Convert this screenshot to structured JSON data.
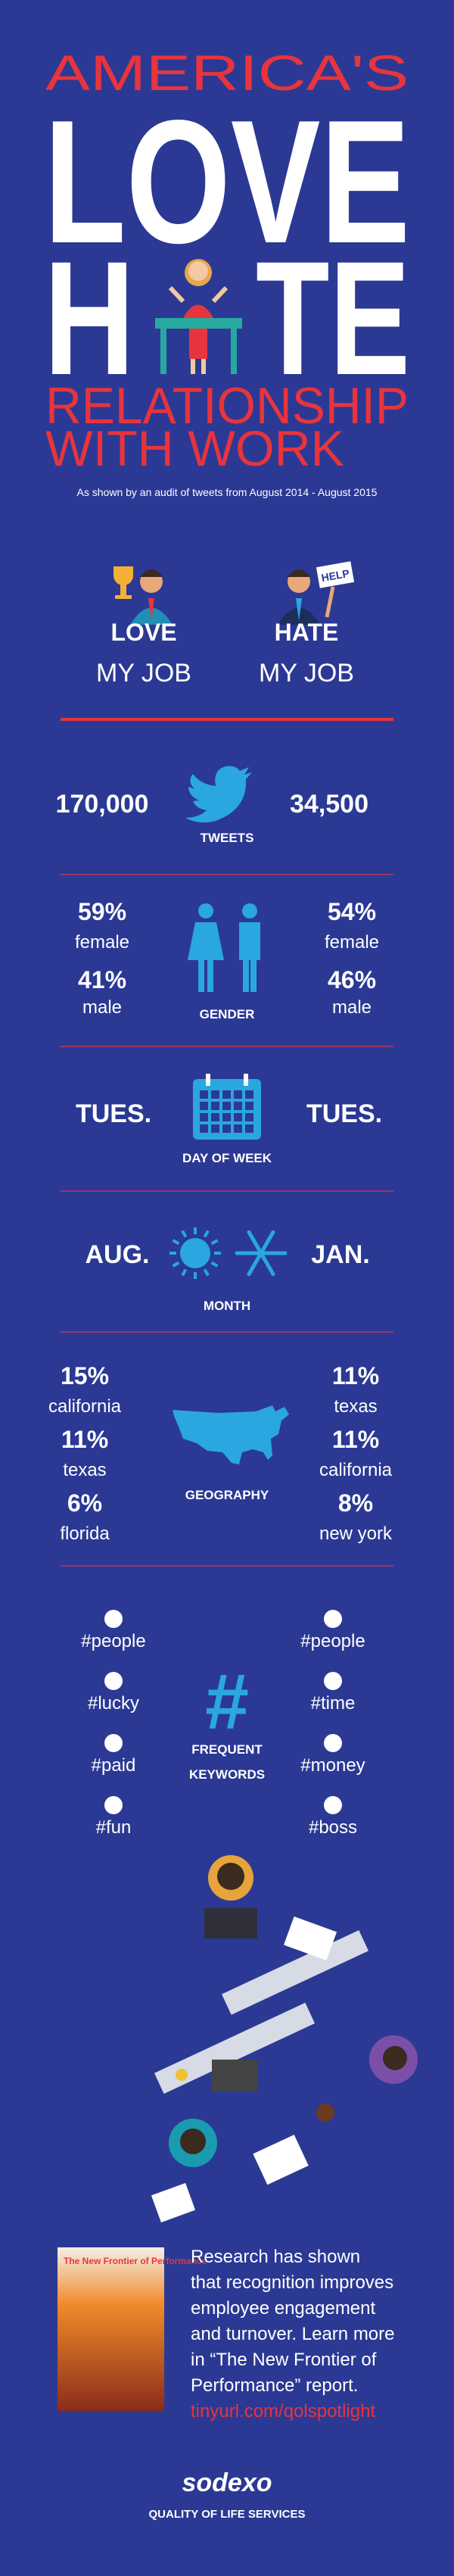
{
  "header": {
    "line1": "AMERICA'S",
    "line2": "LOVE",
    "line3a": "H",
    "line3b": "TE",
    "line4": "RELATIONSHIP",
    "line5": "WITH WORK",
    "subtitle": "As shown by an audit of tweets from August 2014 - August 2015"
  },
  "columns": {
    "love": {
      "title": "LOVE",
      "subtitle": "MY JOB"
    },
    "hate": {
      "title": "HATE",
      "subtitle": "MY JOB",
      "sign": "HELP"
    }
  },
  "tweets": {
    "love": "170,000",
    "hate": "34,500",
    "label": "TWEETS"
  },
  "gender": {
    "label": "GENDER",
    "love": [
      {
        "value": "59%",
        "label": "female"
      },
      {
        "value": "41%",
        "label": "male"
      }
    ],
    "hate": [
      {
        "value": "54%",
        "label": "female"
      },
      {
        "value": "46%",
        "label": "male"
      }
    ]
  },
  "day": {
    "label": "DAY OF WEEK",
    "love": "TUES.",
    "hate": "TUES."
  },
  "month": {
    "label": "MONTH",
    "love": "AUG.",
    "hate": "JAN."
  },
  "geography": {
    "label": "GEOGRAPHY",
    "love": [
      {
        "value": "15%",
        "label": "california"
      },
      {
        "value": "11%",
        "label": "texas"
      },
      {
        "value": "6%",
        "label": "florida"
      }
    ],
    "hate": [
      {
        "value": "11%",
        "label": "texas"
      },
      {
        "value": "11%",
        "label": "california"
      },
      {
        "value": "8%",
        "label": "new york"
      }
    ]
  },
  "keywords": {
    "label_line1": "FREQUENT",
    "label_line2": "KEYWORDS",
    "love": [
      "#people",
      "#lucky",
      "#paid",
      "#fun"
    ],
    "hate": [
      "#people",
      "#time",
      "#money",
      "#boss"
    ]
  },
  "report": {
    "cover_title": "The New Frontier of Performance",
    "lines": [
      "Research has shown",
      "that recognition improves",
      "employee engagement",
      "and turnover. Learn more",
      "in “The New Frontier of",
      "Performance” report."
    ],
    "link": "tinyurl.com/qolspotlight"
  },
  "footer": {
    "logo": "sodexo",
    "tagline": "QUALITY OF LIFE SERVICES"
  }
}
